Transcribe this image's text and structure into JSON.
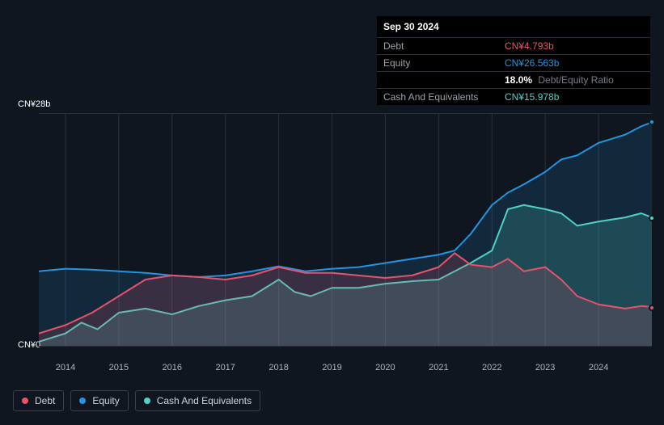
{
  "tooltip": {
    "date": "Sep 30 2024",
    "rows": {
      "debt": {
        "label": "Debt",
        "value": "CN¥4.793b"
      },
      "equity": {
        "label": "Equity",
        "value": "CN¥26.563b"
      },
      "ratio": {
        "pct": "18.0%",
        "label": "Debt/Equity Ratio"
      },
      "cash": {
        "label": "Cash And Equivalents",
        "value": "CN¥15.978b"
      }
    }
  },
  "chart": {
    "type": "area",
    "background_color": "#10161f",
    "grid_color": "#2b313b",
    "y_axis": {
      "min": 0,
      "max": 28,
      "labels": {
        "top": "CN¥28b",
        "bottom": "CN¥0"
      },
      "label_fontsize": 11
    },
    "x_axis": {
      "min": 2013.5,
      "max": 2025.0,
      "ticks": [
        2014,
        2015,
        2016,
        2017,
        2018,
        2019,
        2020,
        2021,
        2022,
        2023,
        2024
      ],
      "label_fontsize": 11,
      "label_color": "#b0b5bd"
    },
    "series": {
      "debt": {
        "label": "Debt",
        "color": "#e8536a",
        "fill_opacity": 0.18,
        "line_width": 2,
        "points": [
          [
            2013.5,
            1.5
          ],
          [
            2014.0,
            2.5
          ],
          [
            2014.5,
            4.0
          ],
          [
            2015.0,
            6.0
          ],
          [
            2015.5,
            8.0
          ],
          [
            2016.0,
            8.5
          ],
          [
            2016.5,
            8.3
          ],
          [
            2017.0,
            8.0
          ],
          [
            2017.5,
            8.5
          ],
          [
            2018.0,
            9.5
          ],
          [
            2018.5,
            8.8
          ],
          [
            2019.0,
            8.8
          ],
          [
            2019.5,
            8.5
          ],
          [
            2020.0,
            8.2
          ],
          [
            2020.5,
            8.5
          ],
          [
            2021.0,
            9.5
          ],
          [
            2021.3,
            11.2
          ],
          [
            2021.6,
            9.8
          ],
          [
            2022.0,
            9.5
          ],
          [
            2022.3,
            10.5
          ],
          [
            2022.6,
            9.0
          ],
          [
            2023.0,
            9.5
          ],
          [
            2023.3,
            8.0
          ],
          [
            2023.6,
            6.0
          ],
          [
            2024.0,
            5.0
          ],
          [
            2024.5,
            4.5
          ],
          [
            2024.8,
            4.8
          ],
          [
            2025.0,
            4.7
          ]
        ]
      },
      "equity": {
        "label": "Equity",
        "color": "#2394df",
        "fill_opacity": 0.15,
        "line_width": 2,
        "points": [
          [
            2013.5,
            9.0
          ],
          [
            2014.0,
            9.3
          ],
          [
            2014.5,
            9.2
          ],
          [
            2015.0,
            9.0
          ],
          [
            2015.5,
            8.8
          ],
          [
            2016.0,
            8.5
          ],
          [
            2016.5,
            8.3
          ],
          [
            2017.0,
            8.5
          ],
          [
            2017.5,
            9.0
          ],
          [
            2018.0,
            9.6
          ],
          [
            2018.5,
            9.0
          ],
          [
            2019.0,
            9.3
          ],
          [
            2019.5,
            9.5
          ],
          [
            2020.0,
            10.0
          ],
          [
            2020.5,
            10.5
          ],
          [
            2021.0,
            11.0
          ],
          [
            2021.3,
            11.5
          ],
          [
            2021.6,
            13.5
          ],
          [
            2022.0,
            17.0
          ],
          [
            2022.3,
            18.5
          ],
          [
            2022.6,
            19.5
          ],
          [
            2023.0,
            21.0
          ],
          [
            2023.3,
            22.5
          ],
          [
            2023.6,
            23.0
          ],
          [
            2024.0,
            24.5
          ],
          [
            2024.5,
            25.5
          ],
          [
            2024.8,
            26.5
          ],
          [
            2025.0,
            27.0
          ]
        ]
      },
      "cash": {
        "label": "Cash And Equivalents",
        "color": "#4fd1c5",
        "fill_opacity": 0.2,
        "line_width": 2,
        "points": [
          [
            2013.5,
            0.5
          ],
          [
            2014.0,
            1.5
          ],
          [
            2014.3,
            2.8
          ],
          [
            2014.6,
            2.0
          ],
          [
            2015.0,
            4.0
          ],
          [
            2015.5,
            4.5
          ],
          [
            2016.0,
            3.8
          ],
          [
            2016.5,
            4.8
          ],
          [
            2017.0,
            5.5
          ],
          [
            2017.5,
            6.0
          ],
          [
            2018.0,
            8.0
          ],
          [
            2018.3,
            6.5
          ],
          [
            2018.6,
            6.0
          ],
          [
            2019.0,
            7.0
          ],
          [
            2019.5,
            7.0
          ],
          [
            2020.0,
            7.5
          ],
          [
            2020.5,
            7.8
          ],
          [
            2021.0,
            8.0
          ],
          [
            2021.3,
            9.0
          ],
          [
            2021.6,
            10.0
          ],
          [
            2022.0,
            11.5
          ],
          [
            2022.3,
            16.5
          ],
          [
            2022.6,
            17.0
          ],
          [
            2023.0,
            16.5
          ],
          [
            2023.3,
            16.0
          ],
          [
            2023.6,
            14.5
          ],
          [
            2024.0,
            15.0
          ],
          [
            2024.5,
            15.5
          ],
          [
            2024.8,
            16.0
          ],
          [
            2025.0,
            15.5
          ]
        ]
      }
    },
    "end_markers": {
      "debt": {
        "x": 2025.0,
        "y": 4.7,
        "color": "#e8536a"
      },
      "equity": {
        "x": 2025.0,
        "y": 27.0,
        "color": "#2394df"
      },
      "cash": {
        "x": 2025.0,
        "y": 15.5,
        "color": "#4fd1c5"
      }
    }
  },
  "legend": {
    "items": [
      {
        "key": "debt",
        "label": "Debt"
      },
      {
        "key": "equity",
        "label": "Equity"
      },
      {
        "key": "cash",
        "label": "Cash And Equivalents"
      }
    ]
  }
}
